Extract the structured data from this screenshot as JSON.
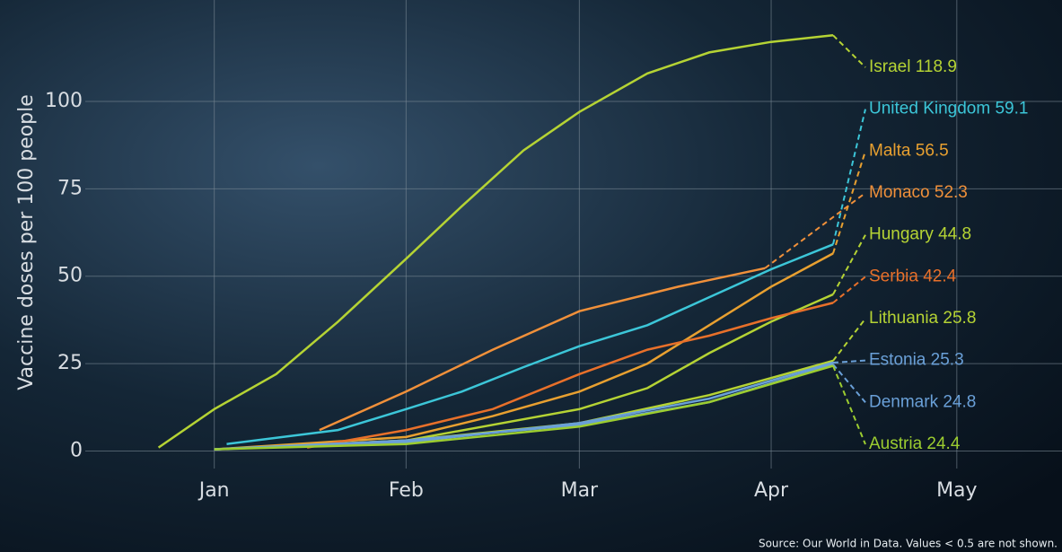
{
  "chart_data": {
    "type": "line",
    "y_label": "Vaccine doses per 100 people",
    "source": "Source: Our World in Data. Values < 0.5 are not shown.",
    "xlim": [
      -31,
      137
    ],
    "ylim": [
      -5,
      129
    ],
    "xticks": [
      {
        "value": 0,
        "label": "Jan"
      },
      {
        "value": 31,
        "label": "Feb"
      },
      {
        "value": 59,
        "label": "Mar"
      },
      {
        "value": 90,
        "label": "Apr"
      },
      {
        "value": 120,
        "label": "May"
      }
    ],
    "yticks": [
      0,
      25,
      50,
      75,
      100
    ],
    "grid": true,
    "series": [
      {
        "name": "Israel",
        "color": "#b5d334",
        "x": [
          -9,
          0,
          10,
          20,
          31,
          40,
          50,
          59,
          70,
          80,
          90,
          100
        ],
        "values": [
          1,
          12,
          22,
          37,
          55,
          70,
          86,
          97,
          108,
          114,
          117,
          118.9
        ]
      },
      {
        "name": "United Kingdom",
        "color": "#3cc6d8",
        "x": [
          2,
          20,
          31,
          40,
          50,
          59,
          70,
          80,
          90,
          100
        ],
        "values": [
          2,
          6,
          12,
          17,
          24,
          30,
          36,
          44,
          52,
          59.1
        ]
      },
      {
        "name": "Malta",
        "color": "#e8a030",
        "x": [
          0,
          31,
          45,
          59,
          70,
          80,
          90,
          100
        ],
        "values": [
          0.5,
          4,
          10,
          17,
          25,
          36,
          47,
          56.5
        ]
      },
      {
        "name": "Monaco",
        "color": "#f0903a",
        "x": [
          17,
          31,
          45,
          59,
          75,
          89
        ],
        "values": [
          6,
          17,
          29,
          40,
          47,
          52.3
        ]
      },
      {
        "name": "Hungary",
        "color": "#b5d334",
        "x": [
          0,
          31,
          59,
          70,
          80,
          90,
          100
        ],
        "values": [
          0.5,
          3,
          12,
          18,
          28,
          37,
          44.8
        ]
      },
      {
        "name": "Serbia",
        "color": "#e8702a",
        "x": [
          15,
          31,
          45,
          59,
          70,
          80,
          90,
          100
        ],
        "values": [
          1,
          6,
          12,
          22,
          29,
          33,
          38,
          42.4
        ]
      },
      {
        "name": "Lithuania",
        "color": "#b5d334",
        "x": [
          0,
          31,
          59,
          80,
          100
        ],
        "values": [
          0.5,
          3,
          8,
          16,
          25.8
        ]
      },
      {
        "name": "Estonia",
        "color": "#6aa0d8",
        "x": [
          0,
          31,
          59,
          80,
          100
        ],
        "values": [
          0.5,
          2.5,
          8,
          15,
          25.3
        ]
      },
      {
        "name": "Denmark",
        "color": "#6aa0d8",
        "x": [
          0,
          31,
          59,
          80,
          100
        ],
        "values": [
          0.5,
          3,
          7.5,
          14,
          24.8
        ]
      },
      {
        "name": "Austria",
        "color": "#9ccd30",
        "x": [
          0,
          31,
          59,
          80,
          100
        ],
        "values": [
          0.5,
          2,
          7,
          14,
          24.4
        ]
      }
    ]
  }
}
